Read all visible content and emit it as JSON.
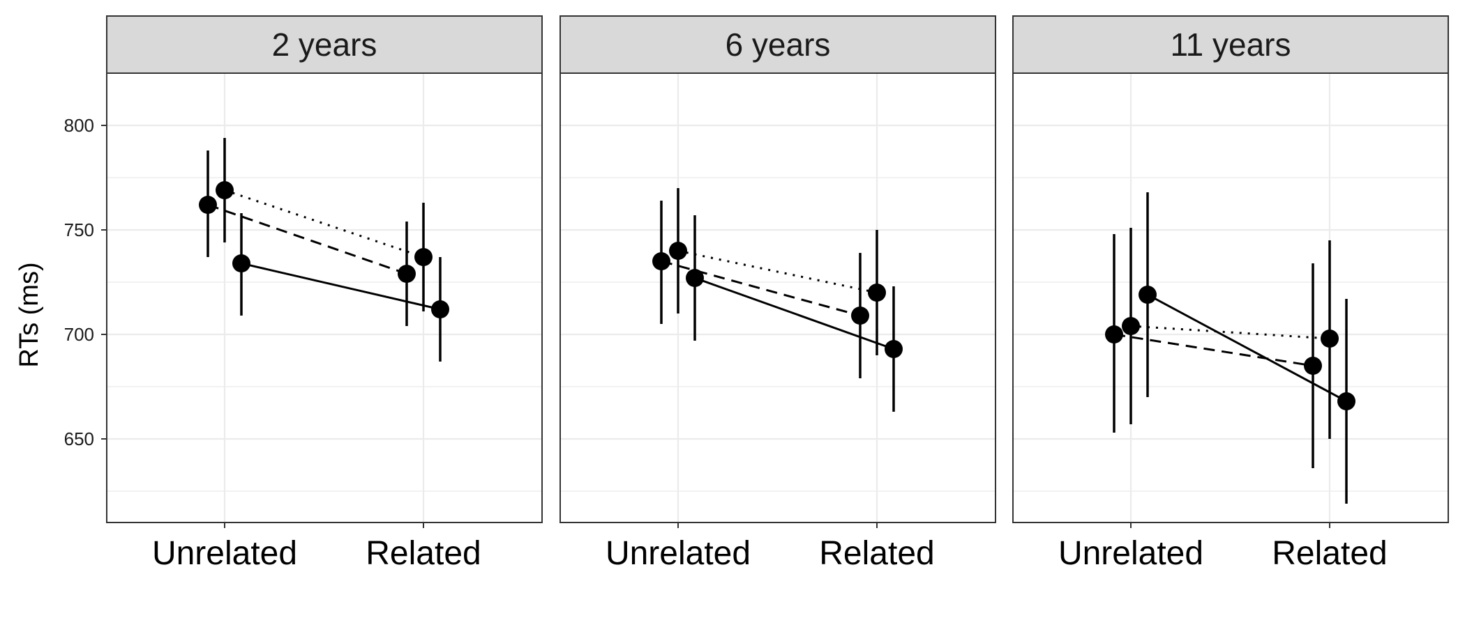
{
  "chart_data": {
    "type": "line",
    "facet_by": "age",
    "ylabel": "RTs (ms)",
    "xlabel": "",
    "categories": [
      "Unrelated",
      "Related"
    ],
    "ylim": [
      610,
      825
    ],
    "yticks": [
      650,
      700,
      750,
      800
    ],
    "grid": true,
    "theme": "bw",
    "colors": {
      "strip_fill": "#d9d9d9",
      "border": "#333333",
      "grid": "#ebebeb",
      "series": "#000000"
    },
    "facets": [
      {
        "title": "2 years",
        "series": [
          {
            "linetype": "dashed",
            "values": [
              762,
              729
            ],
            "error_low": [
              737,
              704
            ],
            "error_high": [
              788,
              754
            ]
          },
          {
            "linetype": "dotted",
            "values": [
              769,
              737
            ],
            "error_low": [
              744,
              711
            ],
            "error_high": [
              794,
              763
            ]
          },
          {
            "linetype": "solid",
            "values": [
              734,
              712
            ],
            "error_low": [
              709,
              687
            ],
            "error_high": [
              758,
              737
            ]
          }
        ]
      },
      {
        "title": "6 years",
        "series": [
          {
            "linetype": "dashed",
            "values": [
              735,
              709
            ],
            "error_low": [
              705,
              679
            ],
            "error_high": [
              764,
              739
            ]
          },
          {
            "linetype": "dotted",
            "values": [
              740,
              720
            ],
            "error_low": [
              710,
              690
            ],
            "error_high": [
              770,
              750
            ]
          },
          {
            "linetype": "solid",
            "values": [
              727,
              693
            ],
            "error_low": [
              697,
              663
            ],
            "error_high": [
              757,
              723
            ]
          }
        ]
      },
      {
        "title": "11 years",
        "series": [
          {
            "linetype": "dashed",
            "values": [
              700,
              685
            ],
            "error_low": [
              653,
              636
            ],
            "error_high": [
              748,
              734
            ]
          },
          {
            "linetype": "dotted",
            "values": [
              704,
              698
            ],
            "error_low": [
              657,
              650
            ],
            "error_high": [
              751,
              745
            ]
          },
          {
            "linetype": "solid",
            "values": [
              719,
              668
            ],
            "error_low": [
              670,
              619
            ],
            "error_high": [
              768,
              717
            ]
          }
        ]
      }
    ]
  }
}
